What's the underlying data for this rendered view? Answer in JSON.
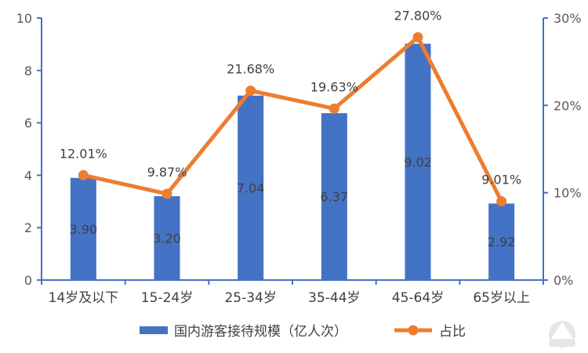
{
  "chart_data": {
    "type": "bar",
    "categories": [
      "14岁及以下",
      "15-24岁",
      "25-34岁",
      "35-44岁",
      "45-64岁",
      "65岁以上"
    ],
    "series": [
      {
        "name": "国内游客接待规模（亿人次）",
        "type": "bar",
        "axis": "left",
        "values": [
          3.9,
          3.2,
          7.04,
          6.37,
          9.02,
          2.92
        ],
        "labels": [
          "3.90",
          "3.20",
          "7.04",
          "6.37",
          "9.02",
          "2.92"
        ],
        "color": "#4472C4"
      },
      {
        "name": "占比",
        "type": "line",
        "axis": "right",
        "values": [
          12.01,
          9.87,
          21.68,
          19.63,
          27.8,
          9.01
        ],
        "labels": [
          "12.01%",
          "9.87%",
          "21.68%",
          "19.63%",
          "27.80%",
          "9.01%"
        ],
        "color": "#ED7D31"
      }
    ],
    "ylim_left": [
      0,
      10
    ],
    "yticks_left": [
      "0",
      "2",
      "4",
      "6",
      "8",
      "10"
    ],
    "ylim_right": [
      0,
      30
    ],
    "yticks_right": [
      "0%",
      "10%",
      "20%",
      "30%"
    ],
    "legend_position": "bottom",
    "grid": false
  }
}
